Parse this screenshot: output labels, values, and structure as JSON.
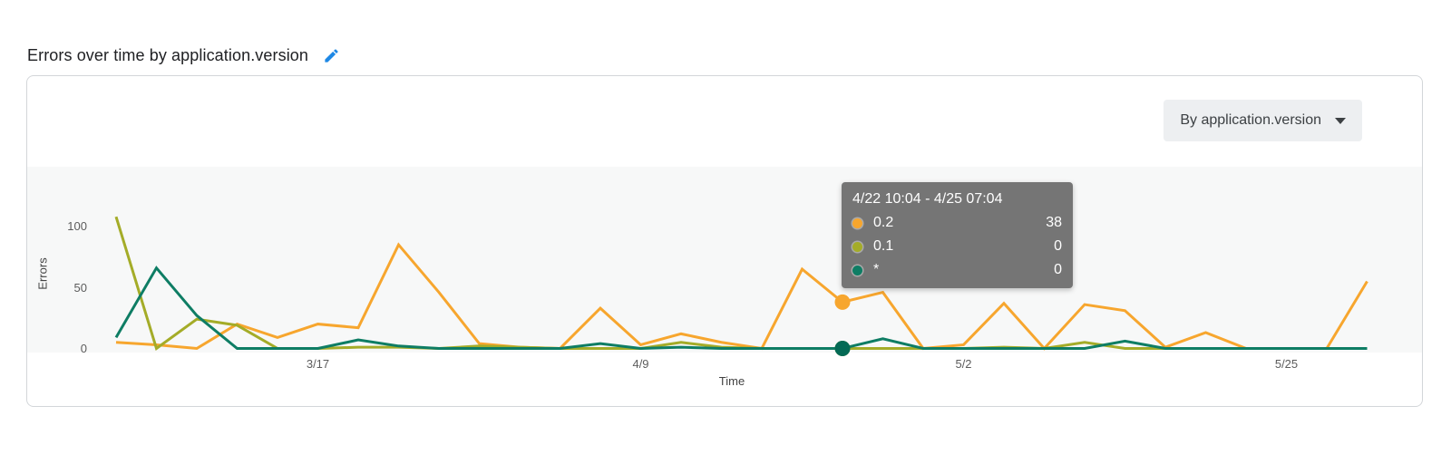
{
  "page": {
    "title": "Errors over time by application.version"
  },
  "controls": {
    "split_by_label": "By application.version"
  },
  "tooltip": {
    "header": "4/22 10:04 - 4/25 07:04",
    "rows": [
      {
        "label": "0.2",
        "value": "38",
        "color": "#F7A62E"
      },
      {
        "label": "0.1",
        "value": "0",
        "color": "#A4AC28"
      },
      {
        "label": "*",
        "value": "0",
        "color": "#0E7D64"
      }
    ]
  },
  "chart_data": {
    "type": "line",
    "title": "Errors over time by application.version",
    "xlabel": "Time",
    "ylabel": "Errors",
    "x_ticks": [
      "3/17",
      "4/9",
      "5/2",
      "5/25"
    ],
    "y_ticks": [
      0,
      50,
      100
    ],
    "ylim": [
      0,
      110
    ],
    "grid": false,
    "legend_position": "tooltip-only",
    "bucket_size": "2d 21h",
    "series": [
      {
        "name": "0.2",
        "color": "#F7A62E",
        "values": [
          5,
          3,
          0,
          20,
          9,
          20,
          17,
          85,
          46,
          4,
          1,
          0,
          33,
          3,
          12,
          5,
          0,
          65,
          38,
          46,
          0,
          3,
          37,
          0,
          36,
          31,
          1,
          13,
          0,
          0,
          0,
          55
        ]
      },
      {
        "name": "0.1",
        "color": "#A4AC28",
        "values": [
          108,
          0,
          24,
          19,
          0,
          0,
          1,
          1,
          0,
          2,
          1,
          0,
          0,
          0,
          5,
          1,
          0,
          0,
          0,
          0,
          0,
          0,
          1,
          0,
          5,
          0,
          0,
          0,
          0,
          0,
          0,
          0
        ]
      },
      {
        "name": "*",
        "color": "#0E7D64",
        "values": [
          9,
          66,
          27,
          0,
          0,
          0,
          7,
          2,
          0,
          0,
          0,
          0,
          4,
          0,
          1,
          0,
          0,
          0,
          0,
          8,
          0,
          0,
          0,
          0,
          0,
          6,
          0,
          0,
          0,
          0,
          0,
          0
        ]
      }
    ],
    "highlight": {
      "index": 18,
      "range_label": "4/22 10:04 - 4/25 07:04",
      "markers": [
        {
          "series": "0.2",
          "value": 38,
          "color": "#F7A62E"
        },
        {
          "series": "0.1",
          "value": 0,
          "color": "#A4AC28"
        },
        {
          "series": "*",
          "value": 0,
          "color": "#046A55"
        }
      ]
    }
  }
}
